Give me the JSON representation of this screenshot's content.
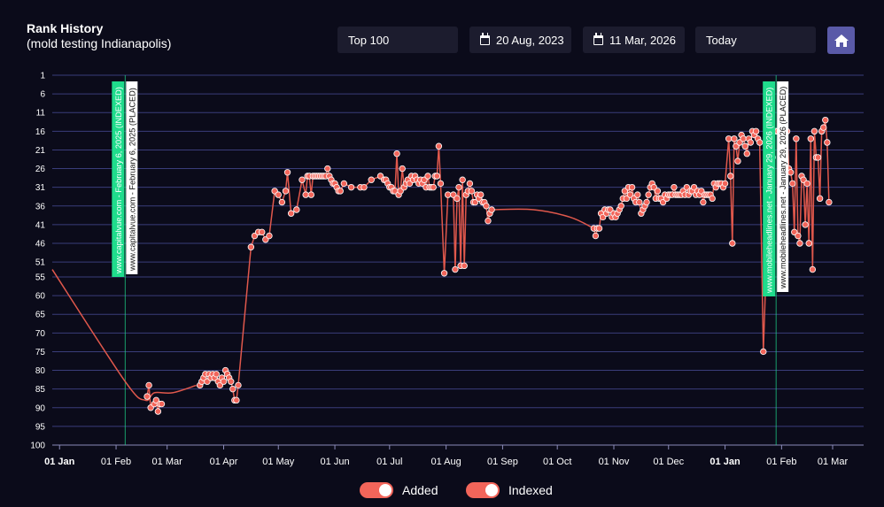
{
  "header": {
    "title": "Rank History",
    "subtitle": "(mold testing Indianapolis)"
  },
  "controls": {
    "rank_filter": "Top 100",
    "start_date": "20 Aug, 2023",
    "end_date": "11 Mar, 2026",
    "range_preset": "Today"
  },
  "legend": {
    "added_label": "Added",
    "indexed_label": "Indexed"
  },
  "colors": {
    "line": "#e0584c",
    "point": "#f2655a",
    "toggle": "#f2655a",
    "indexed_tag": "#1fdc8c",
    "grid": "#3a3d7a",
    "background": "#0b0b1a"
  },
  "chart_data": {
    "type": "line",
    "y_reversed": true,
    "ylim": [
      1,
      100
    ],
    "y_ticks": [
      1,
      6,
      11,
      16,
      21,
      26,
      31,
      36,
      41,
      46,
      51,
      55,
      60,
      65,
      70,
      75,
      80,
      85,
      90,
      95,
      100
    ],
    "x_ticks": [
      {
        "label": "01 Jan",
        "day": 0,
        "bold": true
      },
      {
        "label": "01 Feb",
        "day": 31
      },
      {
        "label": "01 Mar",
        "day": 59
      },
      {
        "label": "01 Apr",
        "day": 90
      },
      {
        "label": "01 May",
        "day": 120
      },
      {
        "label": "01 Jun",
        "day": 151
      },
      {
        "label": "01 Jul",
        "day": 181
      },
      {
        "label": "01 Aug",
        "day": 212
      },
      {
        "label": "01 Sep",
        "day": 243
      },
      {
        "label": "01 Oct",
        "day": 273
      },
      {
        "label": "01 Nov",
        "day": 304
      },
      {
        "label": "01 Dec",
        "day": 334
      },
      {
        "label": "01 Jan",
        "day": 365,
        "bold": true
      },
      {
        "label": "01 Feb",
        "day": 396
      },
      {
        "label": "01 Mar",
        "day": 424
      }
    ],
    "x_domain": [
      -4,
      441
    ],
    "series": [
      {
        "line_points": [
          [
            -4,
            53
          ],
          [
            36,
            83
          ],
          [
            47,
            88
          ],
          [
            52,
            86
          ],
          [
            62,
            86
          ],
          [
            75,
            84
          ]
        ],
        "points": [
          [
            48,
            87
          ],
          [
            49,
            84
          ],
          [
            50,
            90
          ],
          [
            52,
            89
          ],
          [
            53,
            88
          ],
          [
            54,
            91
          ],
          [
            55,
            89
          ],
          [
            56,
            89
          ],
          [
            77,
            84
          ],
          [
            78,
            83
          ],
          [
            79,
            82
          ],
          [
            80,
            81
          ],
          [
            81,
            83
          ],
          [
            82,
            81
          ],
          [
            83,
            82
          ],
          [
            84,
            81
          ],
          [
            85,
            82
          ],
          [
            86,
            81
          ],
          [
            87,
            83
          ],
          [
            88,
            84
          ],
          [
            89,
            82
          ],
          [
            90,
            83
          ],
          [
            91,
            80
          ],
          [
            92,
            81
          ],
          [
            93,
            82
          ],
          [
            94,
            83
          ],
          [
            95,
            85
          ],
          [
            96,
            88
          ],
          [
            97,
            88
          ],
          [
            98,
            84
          ],
          [
            105,
            47
          ],
          [
            107,
            44
          ],
          [
            109,
            43
          ],
          [
            111,
            43
          ],
          [
            113,
            45
          ],
          [
            115,
            44
          ],
          [
            118,
            32
          ],
          [
            120,
            33
          ],
          [
            122,
            35
          ],
          [
            124,
            32
          ],
          [
            125,
            27
          ],
          [
            127,
            38
          ],
          [
            130,
            37
          ],
          [
            133,
            29
          ],
          [
            135,
            33
          ],
          [
            136,
            28
          ],
          [
            137,
            28
          ],
          [
            138,
            33
          ],
          [
            139,
            28
          ],
          [
            140,
            28
          ],
          [
            141,
            28
          ],
          [
            142,
            28
          ],
          [
            143,
            28
          ],
          [
            144,
            28
          ],
          [
            145,
            28
          ],
          [
            146,
            28
          ],
          [
            147,
            26
          ],
          [
            148,
            28
          ],
          [
            149,
            29
          ],
          [
            150,
            30
          ],
          [
            151,
            30
          ],
          [
            152,
            31
          ],
          [
            153,
            32
          ],
          [
            154,
            32
          ],
          [
            156,
            30
          ],
          [
            160,
            31
          ],
          [
            165,
            31
          ],
          [
            167,
            31
          ],
          [
            171,
            29
          ],
          [
            176,
            28
          ],
          [
            178,
            29
          ],
          [
            179,
            29
          ],
          [
            180,
            30
          ],
          [
            181,
            31
          ],
          [
            182,
            31
          ],
          [
            183,
            32
          ],
          [
            184,
            32
          ],
          [
            185,
            22
          ],
          [
            186,
            33
          ],
          [
            187,
            32
          ],
          [
            188,
            26
          ],
          [
            189,
            31
          ],
          [
            190,
            30
          ],
          [
            191,
            29
          ],
          [
            192,
            30
          ],
          [
            193,
            28
          ],
          [
            194,
            29
          ],
          [
            195,
            28
          ],
          [
            196,
            29
          ],
          [
            197,
            30
          ],
          [
            198,
            29
          ],
          [
            199,
            30
          ],
          [
            200,
            29
          ],
          [
            201,
            31
          ],
          [
            202,
            28
          ],
          [
            203,
            31
          ],
          [
            204,
            31
          ],
          [
            205,
            31
          ],
          [
            206,
            28
          ],
          [
            207,
            28
          ],
          [
            208,
            20
          ],
          [
            209,
            30
          ],
          [
            211,
            54
          ],
          [
            213,
            33
          ],
          [
            216,
            33
          ],
          [
            217,
            53
          ],
          [
            218,
            34
          ],
          [
            219,
            31
          ],
          [
            220,
            52
          ],
          [
            221,
            29
          ],
          [
            222,
            52
          ],
          [
            223,
            33
          ],
          [
            224,
            32
          ],
          [
            225,
            30
          ],
          [
            226,
            32
          ],
          [
            227,
            35
          ],
          [
            228,
            35
          ],
          [
            229,
            33
          ],
          [
            230,
            34
          ],
          [
            231,
            33
          ],
          [
            232,
            35
          ],
          [
            233,
            35
          ],
          [
            234,
            36
          ],
          [
            235,
            40
          ],
          [
            236,
            38
          ],
          [
            237,
            37
          ],
          [
            293,
            42
          ],
          [
            294,
            44
          ],
          [
            295,
            42
          ],
          [
            296,
            42
          ],
          [
            297,
            38
          ],
          [
            298,
            39
          ],
          [
            299,
            37
          ],
          [
            300,
            38
          ],
          [
            301,
            37
          ],
          [
            302,
            37
          ],
          [
            303,
            39
          ],
          [
            304,
            38
          ],
          [
            305,
            39
          ],
          [
            306,
            38
          ],
          [
            307,
            37
          ],
          [
            308,
            36
          ],
          [
            309,
            34
          ],
          [
            310,
            32
          ],
          [
            311,
            34
          ],
          [
            312,
            31
          ],
          [
            313,
            33
          ],
          [
            314,
            31
          ],
          [
            315,
            34
          ],
          [
            316,
            35
          ],
          [
            317,
            33
          ],
          [
            318,
            35
          ],
          [
            319,
            38
          ],
          [
            320,
            37
          ],
          [
            321,
            36
          ],
          [
            322,
            35
          ],
          [
            323,
            33
          ],
          [
            324,
            31
          ],
          [
            325,
            30
          ],
          [
            326,
            31
          ],
          [
            327,
            34
          ],
          [
            328,
            32
          ],
          [
            329,
            34
          ],
          [
            330,
            34
          ],
          [
            331,
            35
          ],
          [
            332,
            33
          ],
          [
            333,
            34
          ],
          [
            334,
            33
          ],
          [
            335,
            33
          ],
          [
            336,
            33
          ],
          [
            337,
            31
          ],
          [
            338,
            33
          ],
          [
            339,
            33
          ],
          [
            340,
            33
          ],
          [
            341,
            33
          ],
          [
            342,
            32
          ],
          [
            343,
            33
          ],
          [
            344,
            31
          ],
          [
            345,
            33
          ],
          [
            346,
            32
          ],
          [
            347,
            32
          ],
          [
            348,
            31
          ],
          [
            349,
            33
          ],
          [
            350,
            32
          ],
          [
            351,
            33
          ],
          [
            352,
            32
          ],
          [
            353,
            35
          ],
          [
            354,
            33
          ],
          [
            355,
            33
          ],
          [
            356,
            33
          ],
          [
            357,
            33
          ],
          [
            358,
            34
          ],
          [
            359,
            30
          ],
          [
            360,
            31
          ],
          [
            361,
            30
          ],
          [
            362,
            30
          ],
          [
            363,
            30
          ],
          [
            364,
            31
          ],
          [
            365,
            30
          ],
          [
            367,
            18
          ],
          [
            368,
            28
          ],
          [
            369,
            46
          ],
          [
            370,
            18
          ],
          [
            371,
            20
          ],
          [
            372,
            24
          ],
          [
            373,
            19
          ],
          [
            374,
            17
          ],
          [
            375,
            18
          ],
          [
            376,
            20
          ],
          [
            377,
            22
          ],
          [
            378,
            18
          ],
          [
            379,
            19
          ],
          [
            380,
            16
          ],
          [
            381,
            17
          ],
          [
            382,
            16
          ],
          [
            383,
            18
          ],
          [
            384,
            19
          ],
          [
            386,
            75
          ],
          [
            390,
            16
          ],
          [
            391,
            23
          ],
          [
            392,
            16
          ],
          [
            393,
            16
          ],
          [
            394,
            16
          ],
          [
            395,
            16
          ],
          [
            396,
            16
          ],
          [
            397,
            21
          ],
          [
            398,
            16
          ],
          [
            399,
            16
          ],
          [
            400,
            26
          ],
          [
            401,
            27
          ],
          [
            402,
            30
          ],
          [
            403,
            43
          ],
          [
            404,
            18
          ],
          [
            405,
            44
          ],
          [
            406,
            46
          ],
          [
            407,
            28
          ],
          [
            408,
            29
          ],
          [
            409,
            41
          ],
          [
            410,
            30
          ],
          [
            411,
            46
          ],
          [
            412,
            18
          ],
          [
            413,
            53
          ],
          [
            414,
            16
          ],
          [
            415,
            23
          ],
          [
            416,
            23
          ],
          [
            417,
            34
          ],
          [
            418,
            16
          ],
          [
            419,
            15
          ],
          [
            420,
            13
          ],
          [
            421,
            19
          ],
          [
            422,
            35
          ]
        ],
        "trail_points": [
          [
            237,
            37
          ],
          [
            260,
            37
          ],
          [
            280,
            39
          ],
          [
            293,
            42
          ]
        ]
      }
    ],
    "annotations": [
      {
        "day": 36,
        "indexed_text": "www.capitalvue.com - February 6, 2025 (INDEXED)",
        "placed_text": "www.capitalvue.com - February 6, 2025 (PLACED)"
      },
      {
        "day": 393,
        "indexed_text": "www.mobileheadlines.net - January 29, 2026 (INDEXED)",
        "placed_text": "www.mobileheadlines.net - January 29, 2026 (PLACED)"
      }
    ]
  }
}
